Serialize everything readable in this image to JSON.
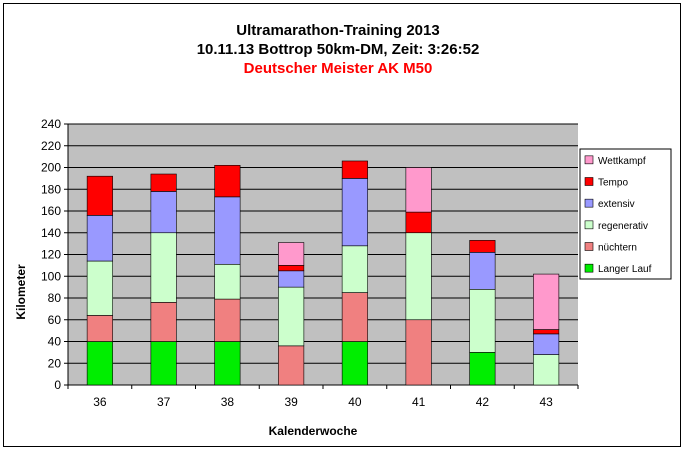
{
  "chart_data": {
    "type": "bar",
    "stacked": true,
    "title": "Ultramarathon-Training 2013",
    "subtitle": "10.11.13 Bottrop 50km-DM, Zeit: 3:26:52",
    "highlight": "Deutscher Meister AK M50",
    "xlabel": "Kalenderwoche",
    "ylabel": "Kilometer",
    "ylim": [
      0,
      240
    ],
    "ytick_step": 20,
    "grid": true,
    "legend_position": "right",
    "categories": [
      "36",
      "37",
      "38",
      "39",
      "40",
      "41",
      "42",
      "43"
    ],
    "series": [
      {
        "name": "Langer Lauf",
        "color": "#00ee00",
        "values": [
          40,
          40,
          40,
          0,
          40,
          0,
          30,
          0
        ]
      },
      {
        "name": "nüchtern",
        "color": "#f08080",
        "values": [
          24,
          36,
          39,
          36,
          45,
          60,
          0,
          0
        ]
      },
      {
        "name": "regenerativ",
        "color": "#ccffcc",
        "values": [
          50,
          64,
          32,
          54,
          43,
          80,
          58,
          28
        ]
      },
      {
        "name": "extensiv",
        "color": "#9999ff",
        "values": [
          42,
          38,
          62,
          15,
          62,
          0,
          34,
          19
        ]
      },
      {
        "name": "Tempo",
        "color": "#ff0000",
        "values": [
          36,
          16,
          29,
          5,
          16,
          19,
          11,
          4
        ]
      },
      {
        "name": "Wettkampf",
        "color": "#ff99cc",
        "values": [
          0,
          0,
          0,
          21,
          0,
          41,
          0,
          51
        ]
      }
    ],
    "colors": {
      "plot_background": "#c0c0c0",
      "highlight": "#ff0000"
    }
  }
}
